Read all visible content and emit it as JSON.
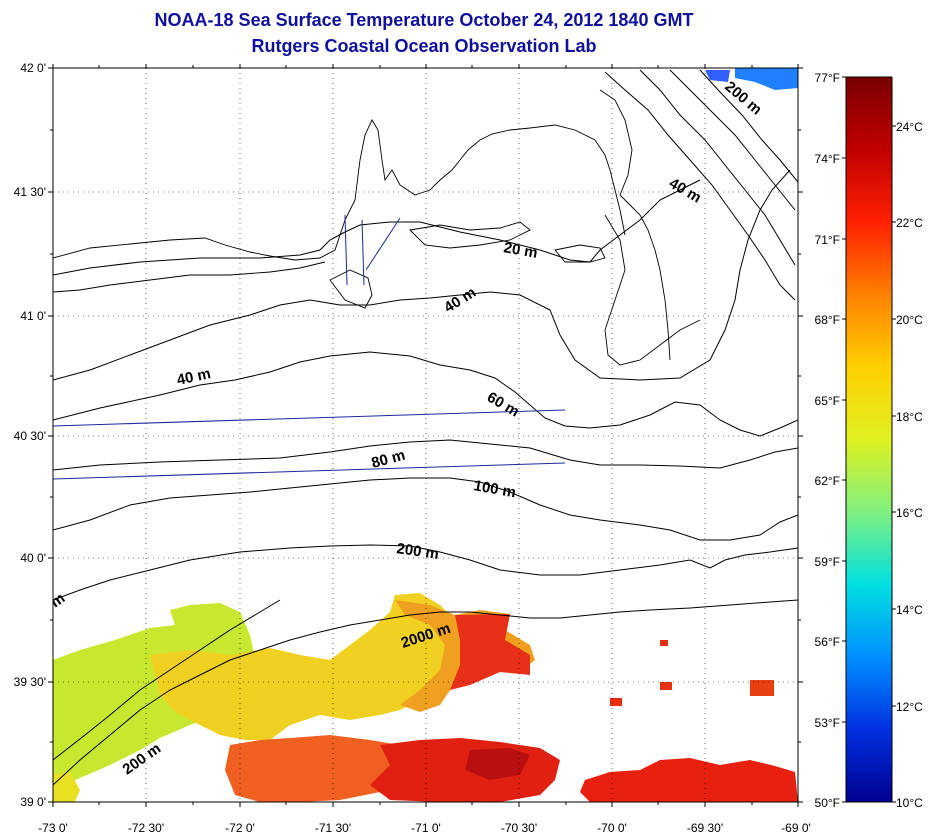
{
  "header": {
    "title": "NOAA-18 Sea Surface Temperature October 24, 2012 1840 GMT",
    "subtitle": "Rutgers Coastal Ocean Observation Lab"
  },
  "map": {
    "lon_labels": [
      "-73 0'",
      "-72 30'",
      "-72 0'",
      "-71 30'",
      "-71 0'",
      "-70 30'",
      "-70 0'",
      "-69 30'",
      "-69 0'"
    ],
    "lat_labels": [
      "42 0'",
      "41 30'",
      "41 0'",
      "40 30'",
      "40 0'",
      "39 30'",
      "39 0'"
    ],
    "contour_labels": [
      "20 m",
      "40 m",
      "40 m",
      "40 m",
      "60 m",
      "80 m",
      "100 m",
      "200 m",
      "200 m",
      "2000 m",
      "200 m",
      "m"
    ]
  },
  "colorbar": {
    "fahrenheit_labels": [
      "77°F",
      "74°F",
      "71°F",
      "68°F",
      "65°F",
      "62°F",
      "59°F",
      "56°F",
      "53°F",
      "50°F"
    ],
    "celsius_labels": [
      "24°C",
      "22°C",
      "20°C",
      "18°C",
      "16°C",
      "14°C",
      "12°C",
      "10°C"
    ],
    "colors": [
      "#7a0000",
      "#c00000",
      "#ff2000",
      "#ff8000",
      "#ffd000",
      "#e0f020",
      "#80f080",
      "#00e0e0",
      "#0090ff",
      "#0030e0",
      "#000090"
    ]
  },
  "colors": {
    "title": "#1010a0",
    "track": "#1a2aa0"
  }
}
